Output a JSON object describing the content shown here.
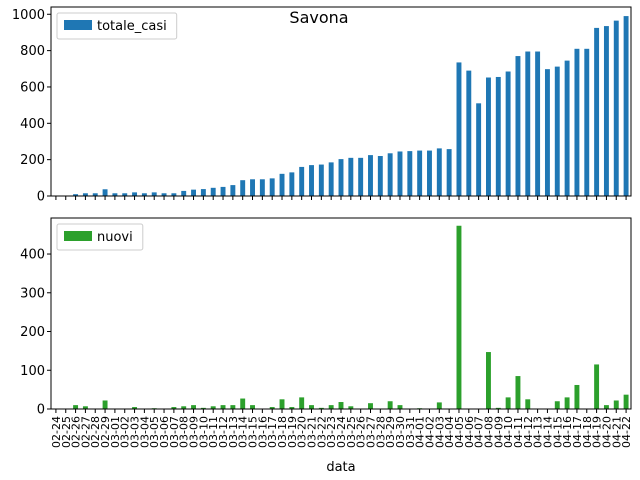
{
  "chart_data": {
    "title": "Savona",
    "xlabel": "data",
    "categories": [
      "02-24",
      "02-25",
      "02-26",
      "02-27",
      "02-28",
      "02-29",
      "03-01",
      "03-02",
      "03-03",
      "03-04",
      "03-05",
      "03-06",
      "03-07",
      "03-08",
      "03-09",
      "03-10",
      "03-11",
      "03-12",
      "03-13",
      "03-14",
      "03-15",
      "03-16",
      "03-17",
      "03-18",
      "03-19",
      "03-20",
      "03-21",
      "03-22",
      "03-23",
      "03-24",
      "03-25",
      "03-26",
      "03-27",
      "03-28",
      "03-29",
      "03-30",
      "03-31",
      "04-01",
      "04-02",
      "04-03",
      "04-04",
      "04-05",
      "04-06",
      "04-07",
      "04-08",
      "04-09",
      "04-10",
      "04-11",
      "04-12",
      "04-13",
      "04-14",
      "04-15",
      "04-16",
      "04-17",
      "04-18",
      "04-19",
      "04-20",
      "04-21",
      "04-22"
    ],
    "panels": [
      {
        "type": "bar",
        "series_name": "totale_casi",
        "color": "#1f77b4",
        "ylim": [
          0,
          1040
        ],
        "yticks": [
          0,
          200,
          400,
          600,
          800,
          1000
        ],
        "legend": "upper left",
        "values": [
          0,
          0,
          10,
          15,
          15,
          37,
          15,
          15,
          20,
          15,
          20,
          15,
          15,
          28,
          35,
          38,
          45,
          50,
          60,
          87,
          92,
          92,
          97,
          122,
          130,
          160,
          170,
          173,
          185,
          203,
          210,
          210,
          225,
          220,
          235,
          245,
          247,
          250,
          250,
          262,
          258,
          735,
          690,
          510,
          652,
          655,
          685,
          770,
          795,
          795,
          698,
          712,
          745,
          810,
          810,
          925,
          935,
          965,
          990
        ]
      },
      {
        "type": "bar",
        "series_name": "nuovi",
        "color": "#2ca02c",
        "ylim": [
          0,
          493
        ],
        "yticks": [
          0,
          100,
          200,
          300,
          400
        ],
        "legend": "upper left",
        "values": [
          0,
          0,
          10,
          7,
          0,
          22,
          0,
          0,
          5,
          0,
          2,
          0,
          5,
          7,
          10,
          3,
          7,
          10,
          10,
          27,
          10,
          0,
          5,
          25,
          5,
          30,
          10,
          3,
          10,
          18,
          7,
          0,
          15,
          0,
          20,
          10,
          0,
          2,
          0,
          17,
          0,
          473,
          0,
          0,
          147,
          3,
          30,
          85,
          25,
          0,
          0,
          20,
          30,
          62,
          0,
          115,
          10,
          22,
          37
        ]
      }
    ]
  }
}
